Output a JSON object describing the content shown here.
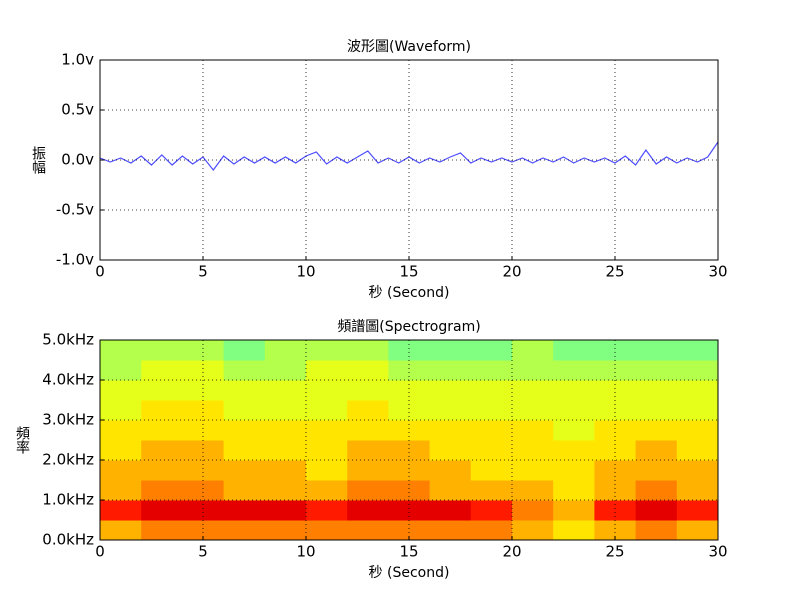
{
  "chart_data": [
    {
      "type": "line",
      "title": "波形圖(Waveform)",
      "xlabel": "秒 (Second)",
      "ylabel": "振幅",
      "color": "#4d4dff",
      "grid": true,
      "xlim": [
        0,
        30
      ],
      "xticks": [
        0,
        5,
        10,
        15,
        20,
        25,
        30
      ],
      "ylim": [
        -1,
        1
      ],
      "yticks": [
        {
          "value": -1,
          "label": "-1.0v"
        },
        {
          "value": -0.5,
          "label": "-0.5v"
        },
        {
          "value": 0,
          "label": "0.0v"
        },
        {
          "value": 0.5,
          "label": "0.5v"
        },
        {
          "value": 1,
          "label": "1.0v"
        }
      ],
      "x": [
        0,
        0.5,
        1,
        1.5,
        2,
        2.5,
        3,
        3.5,
        4,
        4.5,
        5,
        5.5,
        6,
        6.5,
        7,
        7.5,
        8,
        8.5,
        9,
        9.5,
        10,
        10.5,
        11,
        11.5,
        12,
        12.5,
        13,
        13.5,
        14,
        14.5,
        15,
        15.5,
        16,
        16.5,
        17,
        17.5,
        18,
        18.5,
        19,
        19.5,
        20,
        20.5,
        21,
        21.5,
        22,
        22.5,
        23,
        23.5,
        24,
        24.5,
        25,
        25.5,
        26,
        26.5,
        27,
        27.5,
        28,
        28.5,
        29,
        29.5,
        30
      ],
      "values": [
        0.02,
        -0.02,
        0.02,
        -0.03,
        0.04,
        -0.05,
        0.05,
        -0.05,
        0.04,
        -0.04,
        0.03,
        -0.1,
        0.04,
        -0.04,
        0.03,
        -0.03,
        0.03,
        -0.03,
        0.03,
        -0.03,
        0.04,
        0.08,
        -0.04,
        0.03,
        -0.03,
        0.03,
        0.09,
        -0.03,
        0.02,
        -0.03,
        0.03,
        -0.03,
        0.02,
        -0.02,
        0.03,
        0.07,
        -0.03,
        0.02,
        -0.02,
        0.02,
        -0.02,
        0.02,
        -0.03,
        0.02,
        -0.02,
        0.03,
        -0.03,
        0.02,
        -0.02,
        0.02,
        -0.03,
        0.04,
        -0.05,
        0.1,
        -0.04,
        0.03,
        -0.03,
        0.02,
        -0.02,
        0.03,
        0.18
      ]
    },
    {
      "type": "heatmap",
      "title": "頻譜圖(Spectrogram)",
      "xlabel": "秒 (Second)",
      "ylabel": "頻率",
      "colormap": "jet",
      "zlim": [
        0,
        10
      ],
      "grid": true,
      "xlim": [
        0,
        30
      ],
      "xticks": [
        0,
        5,
        10,
        15,
        20,
        25,
        30
      ],
      "ylim": [
        0,
        5
      ],
      "yticks": [
        {
          "value": 0,
          "label": "0.0kHz"
        },
        {
          "value": 1,
          "label": "1.0kHz"
        },
        {
          "value": 2,
          "label": "2.0kHz"
        },
        {
          "value": 3,
          "label": "3.0kHz"
        },
        {
          "value": 4,
          "label": "4.0kHz"
        },
        {
          "value": 5,
          "label": "5.0kHz"
        }
      ],
      "xbins": [
        0,
        2,
        4,
        6,
        8,
        10,
        12,
        14,
        16,
        18,
        20,
        22,
        24,
        26,
        28,
        30
      ],
      "ybins": [
        0,
        0.5,
        1,
        1.5,
        2,
        2.5,
        3,
        3.5,
        4,
        4.5,
        5
      ],
      "z": [
        [
          7,
          7.5,
          7.5,
          7.5,
          7.5,
          7.5,
          7.5,
          7.5,
          7.5,
          7.5,
          7,
          6.5,
          7,
          7.5,
          7
        ],
        [
          8.5,
          9,
          9,
          9,
          9,
          8.5,
          9,
          9,
          9,
          8.5,
          7.5,
          7,
          8.5,
          9,
          8.5
        ],
        [
          7,
          7.5,
          7.5,
          7,
          7,
          7,
          7.5,
          7.5,
          7,
          7,
          7,
          6.5,
          7,
          7.5,
          7
        ],
        [
          7,
          7,
          7,
          7,
          7,
          6.5,
          7,
          7,
          7,
          6.5,
          6.5,
          6.5,
          7,
          7,
          7
        ],
        [
          6.5,
          7,
          7,
          6.5,
          6.5,
          6.5,
          7,
          7,
          6.5,
          6.5,
          6.5,
          6.5,
          6.5,
          7,
          6.5
        ],
        [
          6.5,
          6.5,
          6.5,
          6.5,
          6.5,
          6.5,
          6.5,
          6.5,
          6.5,
          6.5,
          6.5,
          6,
          6.5,
          6.5,
          6.5
        ],
        [
          6,
          6.5,
          6.5,
          6,
          6,
          6,
          6.5,
          6,
          6,
          6,
          6,
          6,
          6,
          6,
          6
        ],
        [
          6,
          6,
          6,
          6,
          6,
          6,
          6,
          6,
          6,
          6,
          6,
          6,
          6,
          6,
          6
        ],
        [
          5.5,
          6,
          6,
          5.5,
          5.5,
          6,
          6,
          5.5,
          5.5,
          5.5,
          5.5,
          5.5,
          5.5,
          5.5,
          5.5
        ],
        [
          5.5,
          5.5,
          5.5,
          5,
          5.5,
          5.5,
          5.5,
          5,
          5,
          5,
          5.5,
          5,
          5,
          5,
          5
        ]
      ]
    }
  ]
}
